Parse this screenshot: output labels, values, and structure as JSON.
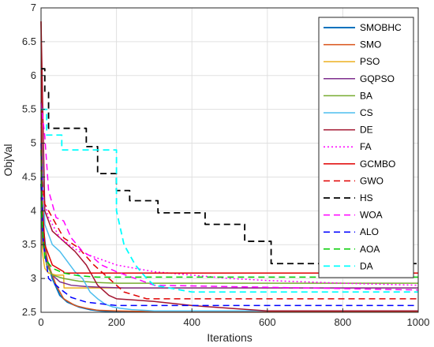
{
  "chart_data": {
    "type": "line",
    "title": "",
    "xlabel": "Iterations",
    "ylabel": "ObjVal",
    "xlim": [
      0,
      1000
    ],
    "ylim": [
      2.5,
      7
    ],
    "xticks": [
      "0",
      "200",
      "400",
      "600",
      "800",
      "1000"
    ],
    "yticks": [
      "2.5",
      "3",
      "3.5",
      "4",
      "4.5",
      "5",
      "5.5",
      "6",
      "6.5",
      "7"
    ],
    "grid": true,
    "legend_position": "top-right",
    "series": [
      {
        "name": "SMOBHC",
        "color": "#0072BD",
        "dash": "solid",
        "width": 2,
        "x": [
          0,
          5,
          15,
          30,
          50,
          70,
          100,
          130,
          160,
          200,
          300,
          1000
        ],
        "y": [
          4.4,
          3.8,
          3.3,
          3.0,
          2.75,
          2.65,
          2.58,
          2.54,
          2.52,
          2.51,
          2.51,
          2.51
        ]
      },
      {
        "name": "SMO",
        "color": "#D95319",
        "dash": "solid",
        "width": 1.5,
        "x": [
          0,
          5,
          20,
          40,
          60,
          90,
          120,
          150,
          200,
          300,
          1000
        ],
        "y": [
          4.2,
          3.6,
          3.2,
          2.9,
          2.7,
          2.6,
          2.56,
          2.53,
          2.52,
          2.51,
          2.51
        ]
      },
      {
        "name": "PSO",
        "color": "#EDB120",
        "dash": "solid",
        "width": 1.5,
        "x": [
          0,
          3,
          10,
          20,
          40,
          60,
          61,
          1000
        ],
        "y": [
          4.9,
          3.4,
          3.15,
          3.08,
          3.05,
          3.05,
          2.86,
          2.86
        ]
      },
      {
        "name": "GQPSO",
        "color": "#7E2F8E",
        "dash": "solid",
        "width": 1.5,
        "x": [
          0,
          5,
          15,
          30,
          50,
          80,
          120,
          160,
          220,
          300,
          1000
        ],
        "y": [
          4.0,
          3.5,
          3.2,
          3.05,
          2.95,
          2.9,
          2.88,
          2.87,
          2.86,
          2.86,
          2.86
        ]
      },
      {
        "name": "BA",
        "color": "#77AC30",
        "dash": "solid",
        "width": 1.5,
        "x": [
          0,
          5,
          15,
          30,
          60,
          100,
          150,
          200,
          300,
          1000
        ],
        "y": [
          4.5,
          3.6,
          3.2,
          3.05,
          3.0,
          2.96,
          2.94,
          2.93,
          2.93,
          2.93
        ]
      },
      {
        "name": "CS",
        "color": "#4DBEEE",
        "dash": "solid",
        "width": 1.5,
        "x": [
          0,
          10,
          30,
          50,
          70,
          90,
          110,
          130,
          150,
          170,
          190,
          210,
          240,
          270,
          300,
          1000
        ],
        "y": [
          5.5,
          3.8,
          3.5,
          3.4,
          3.25,
          3.1,
          3.0,
          2.8,
          2.7,
          2.62,
          2.58,
          2.56,
          2.54,
          2.53,
          2.52,
          2.52
        ]
      },
      {
        "name": "DE",
        "color": "#A2142F",
        "dash": "solid",
        "width": 1.5,
        "x": [
          0,
          10,
          30,
          60,
          90,
          120,
          150,
          180,
          200,
          250,
          300,
          400,
          500,
          600,
          1000
        ],
        "y": [
          6.8,
          4.0,
          3.7,
          3.55,
          3.4,
          3.2,
          2.9,
          2.75,
          2.7,
          2.68,
          2.66,
          2.6,
          2.56,
          2.52,
          2.52
        ]
      },
      {
        "name": "FA",
        "color": "#FF00FF",
        "dash": "dot",
        "width": 1.5,
        "x": [
          0,
          5,
          20,
          50,
          100,
          150,
          200,
          300,
          400,
          500,
          600,
          800,
          1000
        ],
        "y": [
          5.3,
          4.2,
          3.9,
          3.6,
          3.4,
          3.3,
          3.2,
          3.1,
          3.05,
          3.0,
          2.97,
          2.93,
          2.9
        ]
      },
      {
        "name": "GCMBO",
        "color": "#E00000",
        "dash": "solid",
        "width": 1.5,
        "x": [
          0,
          3,
          10,
          30,
          60,
          61,
          1000
        ],
        "y": [
          6.8,
          4.2,
          3.5,
          3.2,
          3.1,
          3.08,
          3.08
        ]
      },
      {
        "name": "GWO",
        "color": "#E00000",
        "dash": "dash",
        "width": 1.5,
        "x": [
          0,
          10,
          30,
          60,
          100,
          140,
          180,
          220,
          280,
          1000
        ],
        "y": [
          4.6,
          4.1,
          3.9,
          3.6,
          3.45,
          3.2,
          3.0,
          2.8,
          2.7,
          2.7
        ]
      },
      {
        "name": "HS",
        "color": "#000000",
        "dash": "dash",
        "width": 1.8,
        "x": [
          0,
          10,
          10,
          20,
          20,
          30,
          30,
          90,
          90,
          120,
          120,
          150,
          150,
          200,
          200,
          235,
          235,
          310,
          310,
          370,
          370,
          435,
          435,
          520,
          520,
          540,
          540,
          610,
          610,
          1000
        ],
        "y": [
          6.1,
          6.1,
          5.75,
          5.75,
          5.22,
          5.22,
          5.22,
          5.22,
          5.22,
          5.22,
          4.95,
          4.95,
          4.55,
          4.55,
          4.3,
          4.3,
          4.15,
          4.15,
          3.97,
          3.97,
          3.97,
          3.97,
          3.8,
          3.8,
          3.8,
          3.8,
          3.55,
          3.55,
          3.22,
          3.22
        ]
      },
      {
        "name": "WOA",
        "color": "#FF00FF",
        "dash": "dash",
        "width": 1.5,
        "x": [
          0,
          10,
          20,
          40,
          60,
          80,
          110,
          140,
          160,
          200,
          300,
          1000
        ],
        "y": [
          5.6,
          5.1,
          4.3,
          3.9,
          3.85,
          3.6,
          3.4,
          3.3,
          3.2,
          3.1,
          2.9,
          2.83
        ]
      },
      {
        "name": "ALO",
        "color": "#0000FF",
        "dash": "dash",
        "width": 1.5,
        "x": [
          0,
          5,
          20,
          50,
          80,
          120,
          200,
          1000
        ],
        "y": [
          5.0,
          3.6,
          3.0,
          2.85,
          2.72,
          2.65,
          2.6,
          2.6
        ]
      },
      {
        "name": "AOA",
        "color": "#00CC00",
        "dash": "dash",
        "width": 1.5,
        "x": [
          0,
          3,
          10,
          30,
          60,
          100,
          150,
          1000
        ],
        "y": [
          4.9,
          3.8,
          3.3,
          3.15,
          3.08,
          3.04,
          3.02,
          3.02
        ]
      },
      {
        "name": "DA",
        "color": "#00FFFF",
        "dash": "dash",
        "width": 1.8,
        "x": [
          0,
          15,
          15,
          55,
          55,
          200,
          200,
          220,
          250,
          280,
          300,
          350,
          400,
          1000
        ],
        "y": [
          5.5,
          5.5,
          5.12,
          5.12,
          4.9,
          4.9,
          4.0,
          3.5,
          3.2,
          3.0,
          2.9,
          2.85,
          2.8,
          2.8
        ]
      }
    ]
  }
}
